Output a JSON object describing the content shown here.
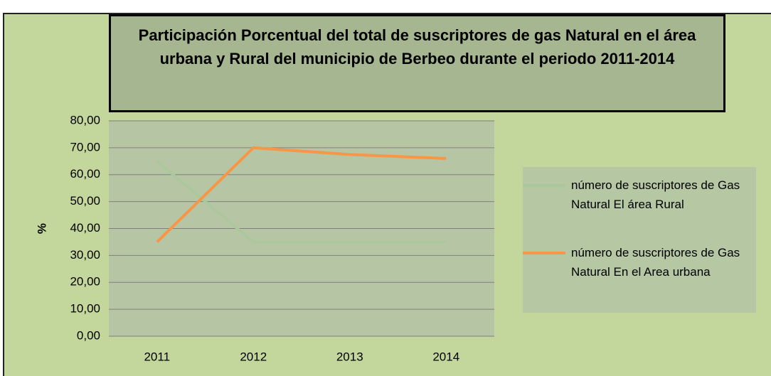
{
  "chart_data": {
    "type": "line",
    "title": "Participación Porcentual del total de suscriptores de gas Natural en el área urbana y Rural del municipio de Berbeo durante el periodo 2011-2014",
    "ylabel": "%",
    "categories": [
      "2011",
      "2012",
      "2013",
      "2014"
    ],
    "series": [
      {
        "name": "número de suscriptores de Gas Natural El área Rural",
        "color": "#adc79c",
        "values": [
          65,
          35,
          35,
          35
        ]
      },
      {
        "name": "número de suscriptores de Gas Natural En el Area urbana",
        "color": "#f79646",
        "values": [
          35,
          70,
          67.5,
          66
        ]
      }
    ],
    "ylim": [
      0,
      80
    ],
    "yticks": [
      {
        "value": 0,
        "label": "0,00"
      },
      {
        "value": 10,
        "label": "10,00"
      },
      {
        "value": 20,
        "label": "20,00"
      },
      {
        "value": 30,
        "label": "30,00"
      },
      {
        "value": 40,
        "label": "40,00"
      },
      {
        "value": 50,
        "label": "50,00"
      },
      {
        "value": 60,
        "label": "60,00"
      },
      {
        "value": 70,
        "label": "70,00"
      },
      {
        "value": 80,
        "label": "80,00"
      }
    ],
    "grid": true,
    "legend": "right"
  }
}
